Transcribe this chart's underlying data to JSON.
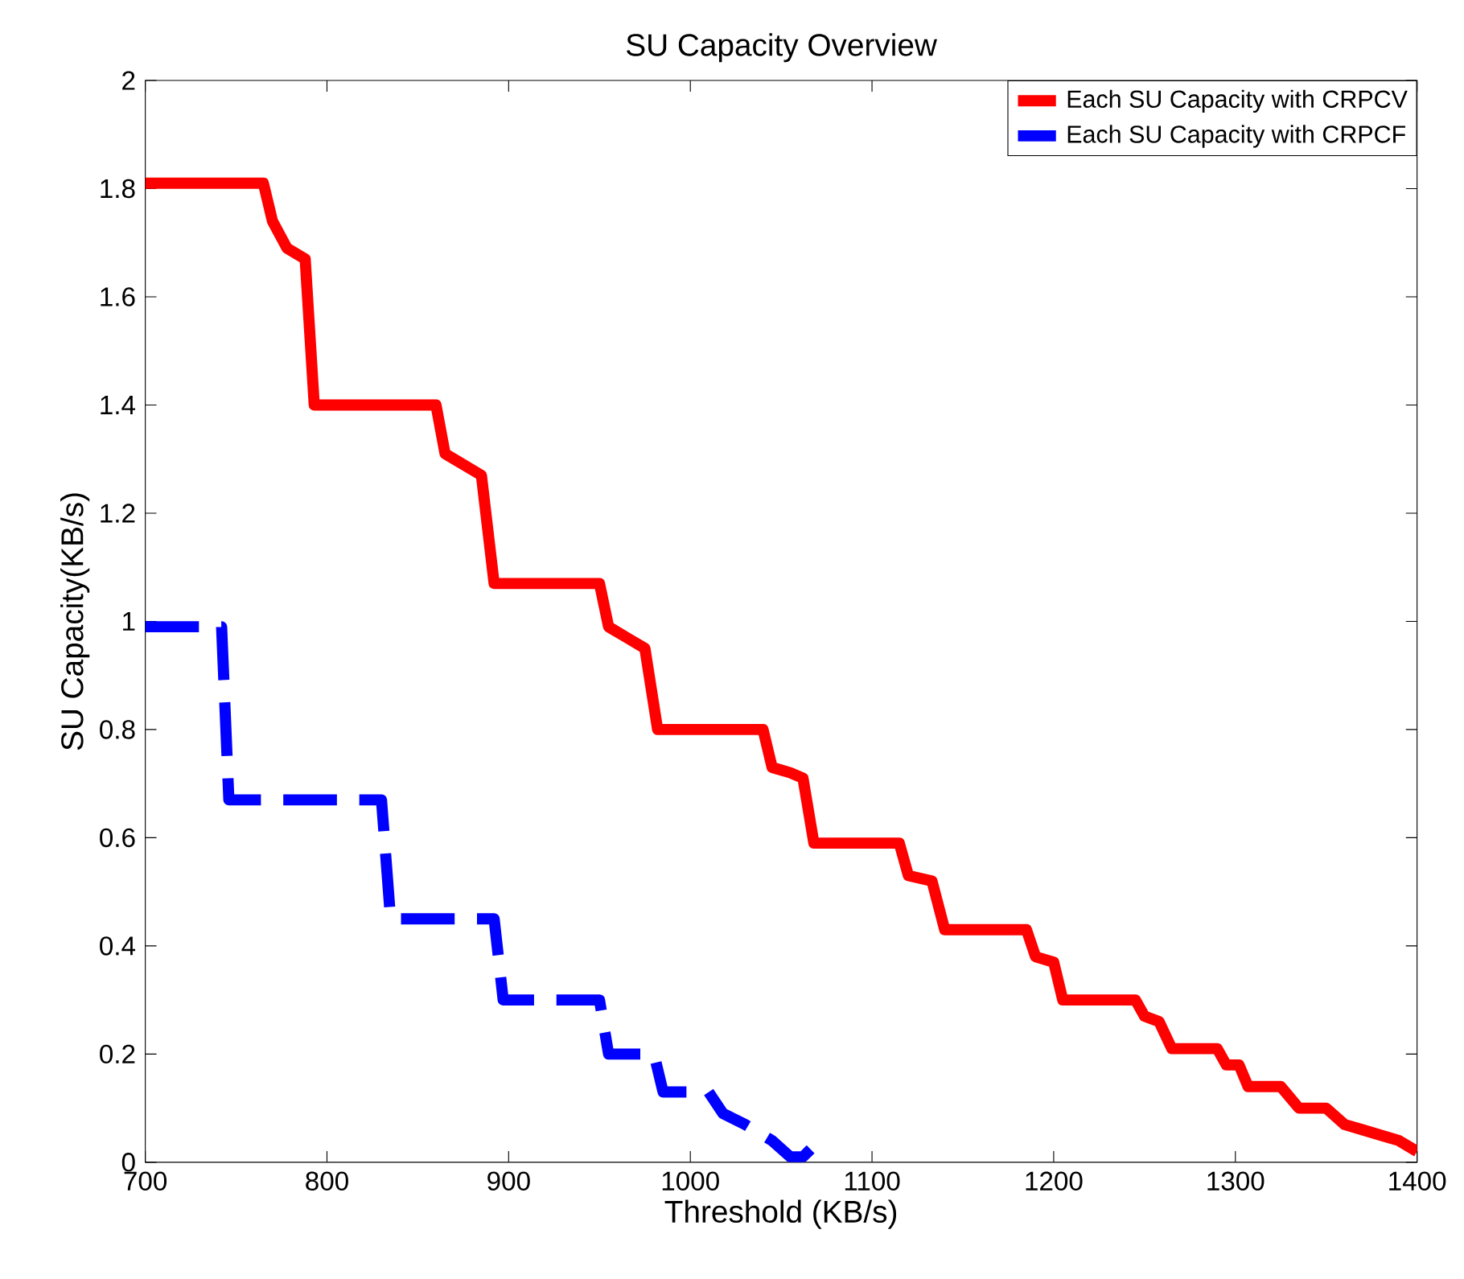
{
  "chart_data": {
    "type": "line",
    "title": "SU Capacity Overview",
    "xlabel": "Threshold (KB/s)",
    "ylabel": "SU Capacity(KB/s)",
    "xlim": [
      700,
      1400
    ],
    "ylim": [
      0,
      2
    ],
    "xticks": [
      700,
      800,
      900,
      1000,
      1100,
      1200,
      1300,
      1400
    ],
    "yticks": [
      0,
      0.2,
      0.4,
      0.6,
      0.8,
      1,
      1.2,
      1.4,
      1.6,
      1.8,
      2
    ],
    "legend": "top right",
    "grid": false,
    "marker": "none",
    "series": [
      {
        "name": "Each SU Capacity with CRPCV",
        "color": "#ff0000",
        "line_style": "solid",
        "x": [
          700,
          765,
          770,
          778,
          788,
          793,
          860,
          865,
          875,
          885,
          892,
          950,
          955,
          965,
          975,
          982,
          1040,
          1045,
          1055,
          1062,
          1068,
          1115,
          1120,
          1133,
          1140,
          1185,
          1190,
          1200,
          1205,
          1245,
          1250,
          1258,
          1265,
          1290,
          1295,
          1302,
          1307,
          1325,
          1335,
          1350,
          1360,
          1370,
          1380,
          1390,
          1400
        ],
        "values": [
          1.81,
          1.81,
          1.74,
          1.69,
          1.67,
          1.4,
          1.4,
          1.31,
          1.29,
          1.27,
          1.07,
          1.07,
          0.99,
          0.97,
          0.95,
          0.8,
          0.8,
          0.73,
          0.72,
          0.71,
          0.59,
          0.59,
          0.53,
          0.52,
          0.43,
          0.43,
          0.38,
          0.37,
          0.3,
          0.3,
          0.27,
          0.26,
          0.21,
          0.21,
          0.18,
          0.18,
          0.14,
          0.14,
          0.1,
          0.1,
          0.07,
          0.06,
          0.05,
          0.04,
          0.02
        ]
      },
      {
        "name": "Each SU Capacity with CRPCF",
        "color": "#0000ff",
        "line_style": "dashed",
        "x": [
          700,
          742,
          746,
          830,
          835,
          892,
          897,
          950,
          955,
          980,
          985,
          1010,
          1018,
          1030,
          1045,
          1055,
          1062,
          1068
        ],
        "values": [
          0.99,
          0.99,
          0.67,
          0.67,
          0.45,
          0.45,
          0.3,
          0.3,
          0.2,
          0.2,
          0.13,
          0.13,
          0.09,
          0.07,
          0.04,
          0.01,
          0.01,
          0.03
        ]
      }
    ]
  }
}
